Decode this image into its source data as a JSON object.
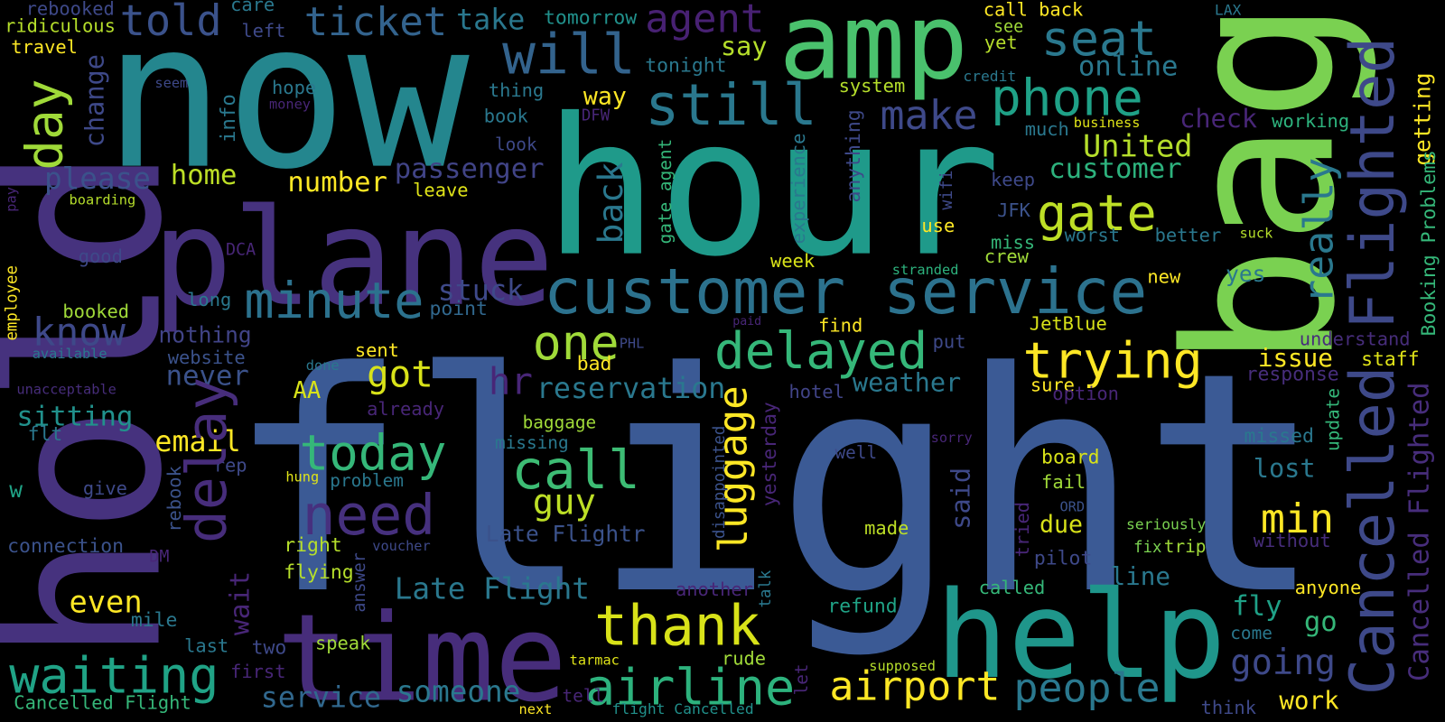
{
  "words": [
    {
      "text": "flight",
      "color": "#3b5a95"
    },
    {
      "text": "hour",
      "color": "#1f9a8a"
    },
    {
      "text": "now",
      "color": "#24868e"
    },
    {
      "text": "plane",
      "color": "#46327e"
    },
    {
      "text": "time",
      "color": "#472d7b"
    },
    {
      "text": "help",
      "color": "#1f968b"
    },
    {
      "text": "amp",
      "color": "#4ac16d"
    },
    {
      "text": "bag",
      "color": "#7ad151"
    },
    {
      "text": "hold",
      "color": "#46327e"
    },
    {
      "text": "customer service",
      "color": "#2c728e"
    },
    {
      "text": "delayed",
      "color": "#35b779"
    },
    {
      "text": "one",
      "color": "#a0da39"
    },
    {
      "text": "trying",
      "color": "#fde725"
    },
    {
      "text": "call",
      "color": "#3dbc74"
    },
    {
      "text": "need",
      "color": "#46307e"
    },
    {
      "text": "today",
      "color": "#35b779"
    },
    {
      "text": "thank",
      "color": "#d8e219"
    },
    {
      "text": "airline",
      "color": "#2db27d"
    },
    {
      "text": "airport",
      "color": "#fde725"
    },
    {
      "text": "people",
      "color": "#2a788e"
    },
    {
      "text": "waiting",
      "color": "#20a386"
    },
    {
      "text": "gate",
      "color": "#bddf26"
    },
    {
      "text": "phone",
      "color": "#1fa187"
    },
    {
      "text": "seat",
      "color": "#2a788e"
    },
    {
      "text": "still",
      "color": "#2a788e"
    },
    {
      "text": "will",
      "color": "#33638d"
    },
    {
      "text": "ticket",
      "color": "#33638d"
    },
    {
      "text": "told",
      "color": "#3b528b"
    },
    {
      "text": "agent",
      "color": "#482173"
    },
    {
      "text": "take",
      "color": "#2a788e"
    },
    {
      "text": "tomorrow",
      "color": "#21918c"
    },
    {
      "text": "minute",
      "color": "#2c728e"
    },
    {
      "text": "know",
      "color": "#3e4989"
    },
    {
      "text": "please",
      "color": "#3b528b"
    },
    {
      "text": "home",
      "color": "#bddf26"
    },
    {
      "text": "number",
      "color": "#fde725"
    },
    {
      "text": "passenger",
      "color": "#414487"
    },
    {
      "text": "make",
      "color": "#3e4989"
    },
    {
      "text": "United",
      "color": "#b5de2b"
    },
    {
      "text": "customer",
      "color": "#2db27d"
    },
    {
      "text": "online",
      "color": "#2a788e"
    },
    {
      "text": "say",
      "color": "#b5de2b"
    },
    {
      "text": "way",
      "color": "#fde725"
    },
    {
      "text": "tonight",
      "color": "#2a788e"
    },
    {
      "text": "got",
      "color": "#d8e219"
    },
    {
      "text": "hr",
      "color": "#482677"
    },
    {
      "text": "reservation",
      "color": "#2a788e"
    },
    {
      "text": "stuck",
      "color": "#3e4989"
    },
    {
      "text": "point",
      "color": "#31688e"
    },
    {
      "text": "guy",
      "color": "#bddf26"
    },
    {
      "text": "email",
      "color": "#fde725"
    },
    {
      "text": "sitting",
      "color": "#21918c"
    },
    {
      "text": "never",
      "color": "#3b528b"
    },
    {
      "text": "website",
      "color": "#3b528b"
    },
    {
      "text": "nothing",
      "color": "#414487"
    },
    {
      "text": "AA",
      "color": "#d8e219"
    },
    {
      "text": "even",
      "color": "#fde725"
    },
    {
      "text": "Late Flight",
      "color": "#2a788e"
    },
    {
      "text": "Late Flightr",
      "color": "#3b528b"
    },
    {
      "text": "service",
      "color": "#31688e"
    },
    {
      "text": "someone",
      "color": "#2a788e"
    },
    {
      "text": "Cancelled Flight",
      "color": "#35b779"
    },
    {
      "text": "next",
      "color": "#fde725"
    },
    {
      "text": "flight Cancelled",
      "color": "#21918c"
    },
    {
      "text": "two",
      "color": "#3e4989"
    },
    {
      "text": "first",
      "color": "#482677"
    },
    {
      "text": "last",
      "color": "#2a788e"
    },
    {
      "text": "speak",
      "color": "#a0da39"
    },
    {
      "text": "mile",
      "color": "#2a788e"
    },
    {
      "text": "flying",
      "color": "#b5de2b"
    },
    {
      "text": "right",
      "color": "#b5de2b"
    },
    {
      "text": "connection",
      "color": "#3b528b"
    },
    {
      "text": "DM",
      "color": "#482677"
    },
    {
      "text": "problem",
      "color": "#2a788e"
    },
    {
      "text": "hung",
      "color": "#dfe318"
    },
    {
      "text": "rep",
      "color": "#3e4989"
    },
    {
      "text": "give",
      "color": "#3e4989"
    },
    {
      "text": "w",
      "color": "#20a386"
    },
    {
      "text": "flt",
      "color": "#2a788e"
    },
    {
      "text": "missing",
      "color": "#2a788e"
    },
    {
      "text": "baggage",
      "color": "#a0da39"
    },
    {
      "text": "bad",
      "color": "#fde725"
    },
    {
      "text": "PHL",
      "color": "#3e4989"
    },
    {
      "text": "done",
      "color": "#2a788e"
    },
    {
      "text": "sent",
      "color": "#fde725"
    },
    {
      "text": "already",
      "color": "#482677"
    },
    {
      "text": "voucher",
      "color": "#3e4989"
    },
    {
      "text": "another",
      "color": "#482677"
    },
    {
      "text": "rude",
      "color": "#a0da39"
    },
    {
      "text": "tarmac",
      "color": "#dfe318"
    },
    {
      "text": "tell",
      "color": "#482677"
    },
    {
      "text": "refund",
      "color": "#20a386"
    },
    {
      "text": "made",
      "color": "#bddf26"
    },
    {
      "text": "well",
      "color": "#3e4989"
    },
    {
      "text": "hotel",
      "color": "#414487"
    },
    {
      "text": "weather",
      "color": "#2a788e"
    },
    {
      "text": "sure",
      "color": "#fde725"
    },
    {
      "text": "put",
      "color": "#3e4989"
    },
    {
      "text": "find",
      "color": "#fde725"
    },
    {
      "text": "paid",
      "color": "#482677"
    },
    {
      "text": "JetBlue",
      "color": "#d8e219"
    },
    {
      "text": "issue",
      "color": "#fde725"
    },
    {
      "text": "response",
      "color": "#472d7b"
    },
    {
      "text": "option",
      "color": "#482677"
    },
    {
      "text": "understand",
      "color": "#472d7b"
    },
    {
      "text": "staff",
      "color": "#dfe318"
    },
    {
      "text": "sorry",
      "color": "#482677"
    },
    {
      "text": "board",
      "color": "#d8e219"
    },
    {
      "text": "fail",
      "color": "#a0da39"
    },
    {
      "text": "ORD",
      "color": "#3b528b"
    },
    {
      "text": "due",
      "color": "#d8e219"
    },
    {
      "text": "pilot",
      "color": "#3e4989"
    },
    {
      "text": "missed",
      "color": "#2a788e"
    },
    {
      "text": "lost",
      "color": "#2a788e"
    },
    {
      "text": "seriously",
      "color": "#7ad151"
    },
    {
      "text": "fix",
      "color": "#7ad151"
    },
    {
      "text": "trip",
      "color": "#a0da39"
    },
    {
      "text": "without",
      "color": "#472d7b"
    },
    {
      "text": "line",
      "color": "#2a788e"
    },
    {
      "text": "min",
      "color": "#fde725"
    },
    {
      "text": "fly",
      "color": "#1fa187"
    },
    {
      "text": "go",
      "color": "#35b779"
    },
    {
      "text": "anyone",
      "color": "#fde725"
    },
    {
      "text": "come",
      "color": "#2a788e"
    },
    {
      "text": "called",
      "color": "#35b779"
    },
    {
      "text": "going",
      "color": "#3e4989"
    },
    {
      "text": "work",
      "color": "#fde725"
    },
    {
      "text": "supposed",
      "color": "#b5de2b"
    },
    {
      "text": "think",
      "color": "#3e4989"
    },
    {
      "text": "week",
      "color": "#d8e219"
    },
    {
      "text": "crew",
      "color": "#a0da39"
    },
    {
      "text": "miss",
      "color": "#35b779"
    },
    {
      "text": "stranded",
      "color": "#2db27d"
    },
    {
      "text": "use",
      "color": "#fde725"
    },
    {
      "text": "worst",
      "color": "#2a788e"
    },
    {
      "text": "better",
      "color": "#2a788e"
    },
    {
      "text": "suck",
      "color": "#b5de2b"
    },
    {
      "text": "new",
      "color": "#fde725"
    },
    {
      "text": "yes",
      "color": "#2a788e"
    },
    {
      "text": "keep",
      "color": "#3e4989"
    },
    {
      "text": "JFK",
      "color": "#3b528b"
    },
    {
      "text": "much",
      "color": "#2a788e"
    },
    {
      "text": "business",
      "color": "#dfe318"
    },
    {
      "text": "check",
      "color": "#482677"
    },
    {
      "text": "working",
      "color": "#2db27d"
    },
    {
      "text": "credit",
      "color": "#2a788e"
    },
    {
      "text": "yet",
      "color": "#b5de2b"
    },
    {
      "text": "see",
      "color": "#a0da39"
    },
    {
      "text": "call back",
      "color": "#fde725"
    },
    {
      "text": "LAX",
      "color": "#2a788e"
    },
    {
      "text": "system",
      "color": "#b5de2b"
    },
    {
      "text": "thing",
      "color": "#2a788e"
    },
    {
      "text": "book",
      "color": "#2a788e"
    },
    {
      "text": "look",
      "color": "#3e4989"
    },
    {
      "text": "DFW",
      "color": "#482677"
    },
    {
      "text": "leave",
      "color": "#dfe318"
    },
    {
      "text": "long",
      "color": "#2a788e"
    },
    {
      "text": "good",
      "color": "#3e4989"
    },
    {
      "text": "booked",
      "color": "#a0da39"
    },
    {
      "text": "DCA",
      "color": "#482677"
    },
    {
      "text": "available",
      "color": "#2a788e"
    },
    {
      "text": "unacceptable",
      "color": "#472d7b"
    },
    {
      "text": "boarding",
      "color": "#b5de2b"
    },
    {
      "text": "rebooked",
      "color": "#3e4989"
    },
    {
      "text": "care",
      "color": "#2a788e"
    },
    {
      "text": "ridiculous",
      "color": "#b5de2b"
    },
    {
      "text": "travel",
      "color": "#fde725"
    },
    {
      "text": "left",
      "color": "#3e4989"
    },
    {
      "text": "seem",
      "color": "#3e4989"
    },
    {
      "text": "hope",
      "color": "#2a788e"
    },
    {
      "text": "money",
      "color": "#482677"
    },
    {
      "text": "day",
      "color": "#a0da39"
    },
    {
      "text": "change",
      "color": "#3e4989"
    },
    {
      "text": "info",
      "color": "#2a788e"
    },
    {
      "text": "delay",
      "color": "#472d7b"
    },
    {
      "text": "wait",
      "color": "#482677"
    },
    {
      "text": "back",
      "color": "#2a788e"
    },
    {
      "text": "gate agent",
      "color": "#35b779"
    },
    {
      "text": "luggage",
      "color": "#fde725"
    },
    {
      "text": "disappointed",
      "color": "#3b528b"
    },
    {
      "text": "yesterday",
      "color": "#482677"
    },
    {
      "text": "answer",
      "color": "#3e4989"
    },
    {
      "text": "talk",
      "color": "#2a788e"
    },
    {
      "text": "let",
      "color": "#482677"
    },
    {
      "text": "rebook",
      "color": "#3b528b"
    },
    {
      "text": "experience",
      "color": "#2a788e"
    },
    {
      "text": "anything",
      "color": "#3e4989"
    },
    {
      "text": "wifi",
      "color": "#3e4989"
    },
    {
      "text": "really",
      "color": "#2a788e"
    },
    {
      "text": "Cancelled Flighted",
      "color": "#3e4989"
    },
    {
      "text": "Cancelled Flighted",
      "color": "#472d7b"
    },
    {
      "text": "getting",
      "color": "#fde725"
    },
    {
      "text": "Booking Problems",
      "color": "#35b779"
    },
    {
      "text": "employee",
      "color": "#fde725"
    },
    {
      "text": "pay",
      "color": "#482677"
    },
    {
      "text": "update",
      "color": "#35b779"
    },
    {
      "text": "said",
      "color": "#3e4989"
    },
    {
      "text": "tried",
      "color": "#482677"
    }
  ]
}
